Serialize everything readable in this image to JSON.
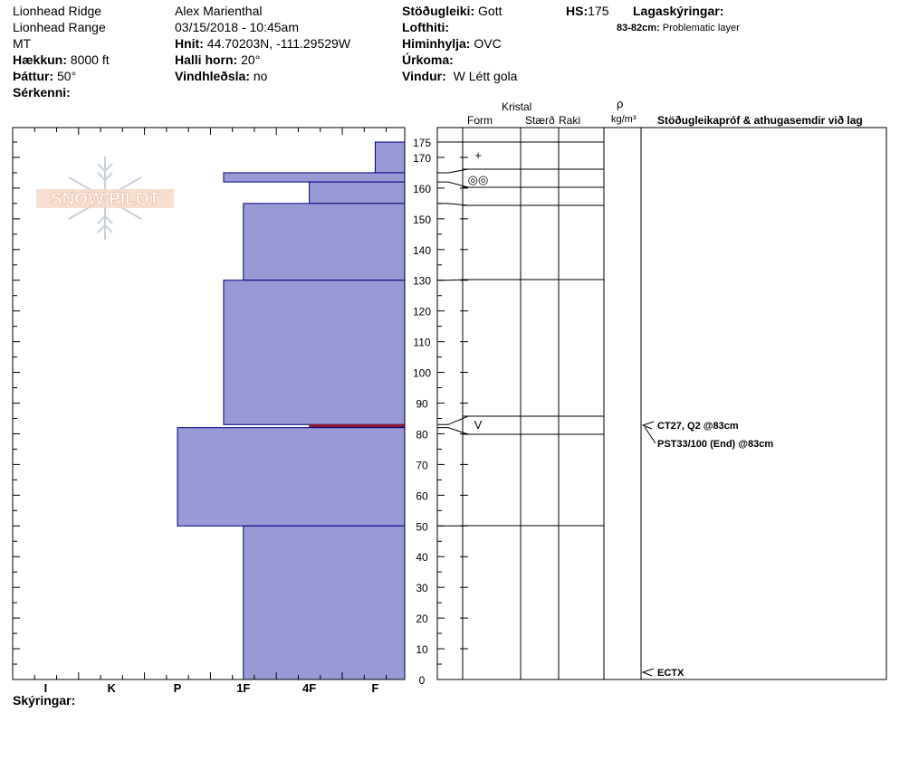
{
  "header": {
    "location": "Lionhead Ridge",
    "range": "Lionhead Range",
    "state": "MT",
    "elevation_label": "Hækkun:",
    "elevation_value": "8000 ft",
    "aspect_label": "Þáttur:",
    "aspect_value": "50°",
    "features_label": "Sérkenni:",
    "observer": "Alex Marienthal",
    "datetime": "03/15/2018 - 10:45am",
    "coords_label": "Hnit:",
    "coords_value": "44.70203N, -111.29529W",
    "slope_label": "Halli horn:",
    "slope_value": "20°",
    "wind_loading_label": "Vindhleðsla:",
    "wind_loading_value": "no",
    "stability_label": "Stöðugleiki:",
    "stability_value": "Gott",
    "air_temp_label": "Lofthiti:",
    "sky_label": "Himinhylja:",
    "sky_value": "OVC",
    "precip_label": "Úrkoma:",
    "wind_label": "Vindur:",
    "wind_value": "W Létt gola",
    "hs_label": "HS:",
    "hs_value": "175",
    "layer_notes_label": "Lagaskýringar:",
    "layer_note_range": "83-82cm:",
    "layer_note_text": "Problematic layer"
  },
  "footer": {
    "legend_label": "Skýringar:"
  },
  "logo": {
    "text": "SNOW PILOT"
  },
  "columns": {
    "crystal": "Kristal",
    "form": "Form",
    "size": "Stærð",
    "moisture": "Raki",
    "rho": "ρ",
    "density_unit": "kg/m³",
    "tests": "Stöðugleikapróf & athugasemdir við lag"
  },
  "chart_data": {
    "type": "bar",
    "title": "",
    "ylabel": "",
    "xlabel": "",
    "ylim": [
      0,
      175
    ],
    "y_ticks": [
      0,
      10,
      20,
      30,
      40,
      50,
      60,
      70,
      80,
      90,
      100,
      110,
      120,
      130,
      140,
      150,
      160,
      170,
      175
    ],
    "hardness_scale": [
      "I",
      "K",
      "P",
      "1F",
      "4F",
      "F"
    ],
    "layers": [
      {
        "top": 175,
        "bottom": 165,
        "hardness": 6.0
      },
      {
        "top": 165,
        "bottom": 162,
        "hardness": 3.7
      },
      {
        "top": 162,
        "bottom": 155,
        "hardness": 5.0
      },
      {
        "top": 155,
        "bottom": 130,
        "hardness": 4.0
      },
      {
        "top": 130,
        "bottom": 83,
        "hardness": 3.7
      },
      {
        "top": 83,
        "bottom": 82,
        "hardness": 5.0,
        "problematic": true
      },
      {
        "top": 82,
        "bottom": 50,
        "hardness": 3.0
      },
      {
        "top": 50,
        "bottom": 0,
        "hardness": 4.0
      }
    ],
    "layer_boundaries": [
      175,
      165,
      162,
      155,
      130,
      83,
      82,
      50,
      0
    ],
    "grain_forms": [
      {
        "top": 175,
        "bottom": 165,
        "symbol": "+"
      },
      {
        "top": 162,
        "bottom": 155,
        "symbol": "◎◎"
      },
      {
        "top": 83,
        "bottom": 82,
        "symbol": "V"
      }
    ],
    "tests": [
      {
        "depth": 83,
        "lines": [
          "CT27, Q2 @83cm",
          "PST33/100 (End) @83cm"
        ]
      },
      {
        "depth": 0,
        "lines": [
          "ECTX"
        ]
      }
    ],
    "colors": {
      "layer_fill": "#9999d6",
      "layer_stroke": "#000080",
      "problematic": "#8b1a3a"
    }
  }
}
